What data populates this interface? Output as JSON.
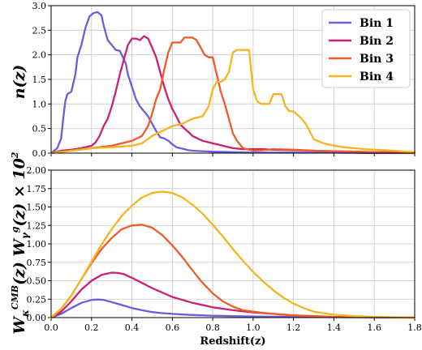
{
  "chart_data": [
    {
      "type": "line",
      "panel": "top",
      "ylabel": "n(z)",
      "xlim": [
        0.0,
        1.8
      ],
      "ylim": [
        0.0,
        3.0
      ],
      "xticks": [
        "0.0",
        "0.2",
        "0.4",
        "0.6",
        "0.8",
        "1.0",
        "1.2",
        "1.4",
        "1.6",
        "1.8"
      ],
      "yticks": [
        "0.0",
        "0.5",
        "1.0",
        "1.5",
        "2.0",
        "2.5",
        "3.0"
      ],
      "grid": true,
      "legend_position": "top-right",
      "series": [
        {
          "name": "Bin 1",
          "color": "#6f5bdc",
          "x": [
            0.0,
            0.03,
            0.05,
            0.06,
            0.07,
            0.08,
            0.1,
            0.12,
            0.13,
            0.15,
            0.17,
            0.19,
            0.21,
            0.23,
            0.25,
            0.26,
            0.28,
            0.3,
            0.32,
            0.34,
            0.35,
            0.37,
            0.38,
            0.4,
            0.42,
            0.44,
            0.46,
            0.48,
            0.5,
            0.52,
            0.54,
            0.56,
            0.58,
            0.6,
            0.62,
            0.64,
            0.66,
            0.68,
            0.7,
            0.75,
            0.8,
            0.9,
            1.0,
            1.2,
            1.4,
            1.6,
            1.8
          ],
          "y": [
            0.0,
            0.1,
            0.3,
            0.7,
            1.05,
            1.2,
            1.25,
            1.6,
            1.95,
            2.2,
            2.55,
            2.78,
            2.85,
            2.87,
            2.8,
            2.6,
            2.3,
            2.2,
            2.1,
            2.08,
            2.0,
            1.82,
            1.6,
            1.35,
            1.1,
            0.95,
            0.85,
            0.75,
            0.6,
            0.45,
            0.32,
            0.3,
            0.25,
            0.18,
            0.12,
            0.1,
            0.08,
            0.06,
            0.05,
            0.04,
            0.03,
            0.02,
            0.01,
            0.01,
            0.01,
            0.0,
            0.0
          ]
        },
        {
          "name": "Bin 2",
          "color": "#cc2070",
          "x": [
            0.0,
            0.05,
            0.1,
            0.15,
            0.2,
            0.22,
            0.24,
            0.26,
            0.28,
            0.3,
            0.32,
            0.34,
            0.36,
            0.38,
            0.4,
            0.42,
            0.44,
            0.46,
            0.48,
            0.5,
            0.52,
            0.54,
            0.56,
            0.58,
            0.6,
            0.62,
            0.64,
            0.66,
            0.68,
            0.7,
            0.75,
            0.8,
            0.85,
            0.9,
            0.95,
            1.0,
            1.05,
            1.1,
            1.2,
            1.3,
            1.4,
            1.5,
            1.6,
            1.7,
            1.8
          ],
          "y": [
            0.0,
            0.05,
            0.07,
            0.1,
            0.15,
            0.22,
            0.35,
            0.55,
            0.7,
            0.95,
            1.25,
            1.6,
            1.9,
            2.2,
            2.33,
            2.33,
            2.3,
            2.38,
            2.33,
            2.15,
            1.95,
            1.65,
            1.35,
            1.1,
            0.9,
            0.75,
            0.58,
            0.5,
            0.43,
            0.35,
            0.25,
            0.2,
            0.15,
            0.1,
            0.08,
            0.08,
            0.08,
            0.07,
            0.06,
            0.05,
            0.04,
            0.03,
            0.02,
            0.02,
            0.01
          ]
        },
        {
          "name": "Bin 3",
          "color": "#ef5a2a",
          "x": [
            0.0,
            0.1,
            0.2,
            0.3,
            0.35,
            0.4,
            0.45,
            0.48,
            0.5,
            0.52,
            0.54,
            0.56,
            0.58,
            0.6,
            0.62,
            0.64,
            0.66,
            0.68,
            0.7,
            0.72,
            0.74,
            0.76,
            0.78,
            0.8,
            0.82,
            0.84,
            0.86,
            0.88,
            0.9,
            0.92,
            0.95,
            1.0,
            1.05,
            1.1,
            1.2,
            1.3,
            1.4,
            1.5,
            1.6,
            1.7,
            1.8
          ],
          "y": [
            0.0,
            0.05,
            0.1,
            0.15,
            0.2,
            0.25,
            0.35,
            0.55,
            0.8,
            1.1,
            1.3,
            1.7,
            2.05,
            2.25,
            2.25,
            2.25,
            2.35,
            2.35,
            2.35,
            2.3,
            2.15,
            2.0,
            1.95,
            1.95,
            1.6,
            1.25,
            1.0,
            0.7,
            0.4,
            0.25,
            0.1,
            0.05,
            0.06,
            0.08,
            0.07,
            0.05,
            0.04,
            0.03,
            0.02,
            0.01,
            0.0
          ]
        },
        {
          "name": "Bin 4",
          "color": "#f5b51f",
          "x": [
            0.0,
            0.1,
            0.2,
            0.3,
            0.4,
            0.45,
            0.5,
            0.55,
            0.6,
            0.65,
            0.7,
            0.75,
            0.78,
            0.8,
            0.82,
            0.84,
            0.86,
            0.88,
            0.9,
            0.92,
            0.95,
            0.98,
            1.0,
            1.02,
            1.04,
            1.06,
            1.08,
            1.1,
            1.12,
            1.14,
            1.16,
            1.18,
            1.2,
            1.22,
            1.24,
            1.26,
            1.28,
            1.3,
            1.35,
            1.4,
            1.45,
            1.5,
            1.55,
            1.6,
            1.65,
            1.7,
            1.75,
            1.8
          ],
          "y": [
            0.0,
            0.05,
            0.1,
            0.12,
            0.15,
            0.2,
            0.35,
            0.45,
            0.55,
            0.6,
            0.7,
            0.75,
            0.95,
            1.3,
            1.45,
            1.45,
            1.5,
            1.65,
            2.05,
            2.1,
            2.1,
            2.1,
            1.3,
            1.05,
            1.0,
            1.0,
            1.0,
            1.2,
            1.2,
            1.2,
            0.95,
            0.85,
            0.85,
            0.78,
            0.7,
            0.6,
            0.45,
            0.28,
            0.2,
            0.15,
            0.12,
            0.1,
            0.08,
            0.07,
            0.06,
            0.05,
            0.03,
            0.02
          ]
        }
      ]
    },
    {
      "type": "line",
      "panel": "bottom",
      "ylabel": "W_κ^CMB(z) W_γ^g(z) × 10²",
      "xlabel": "Redshift(z)",
      "xlim": [
        0.0,
        1.8
      ],
      "ylim": [
        0.0,
        2.0
      ],
      "xticks": [
        "0.0",
        "0.2",
        "0.4",
        "0.6",
        "0.8",
        "1.0",
        "1.2",
        "1.4",
        "1.6",
        "1.8"
      ],
      "yticks": [
        "0.00",
        "0.25",
        "0.50",
        "0.75",
        "1.00",
        "1.25",
        "1.50",
        "1.75",
        "2.00"
      ],
      "grid": true,
      "series": [
        {
          "name": "Bin 1",
          "color": "#6f5bdc",
          "x": [
            0.0,
            0.05,
            0.1,
            0.15,
            0.2,
            0.23,
            0.26,
            0.3,
            0.35,
            0.4,
            0.45,
            0.5,
            0.55,
            0.6,
            0.7,
            0.8,
            0.9,
            1.0,
            1.2,
            1.4,
            1.6,
            1.8
          ],
          "y": [
            0.0,
            0.05,
            0.13,
            0.2,
            0.24,
            0.245,
            0.24,
            0.21,
            0.17,
            0.13,
            0.1,
            0.075,
            0.06,
            0.05,
            0.035,
            0.025,
            0.02,
            0.015,
            0.01,
            0.005,
            0.003,
            0.0
          ]
        },
        {
          "name": "Bin 2",
          "color": "#cc2070",
          "x": [
            0.0,
            0.05,
            0.1,
            0.15,
            0.2,
            0.25,
            0.3,
            0.33,
            0.36,
            0.4,
            0.45,
            0.5,
            0.55,
            0.6,
            0.7,
            0.8,
            0.9,
            1.0,
            1.1,
            1.2,
            1.4,
            1.6,
            1.8
          ],
          "y": [
            0.0,
            0.08,
            0.22,
            0.38,
            0.5,
            0.58,
            0.61,
            0.605,
            0.59,
            0.54,
            0.47,
            0.4,
            0.34,
            0.28,
            0.2,
            0.14,
            0.1,
            0.07,
            0.05,
            0.03,
            0.01,
            0.005,
            0.0
          ]
        },
        {
          "name": "Bin 3",
          "color": "#ef5a2a",
          "x": [
            0.0,
            0.05,
            0.1,
            0.15,
            0.2,
            0.25,
            0.3,
            0.35,
            0.4,
            0.45,
            0.5,
            0.55,
            0.6,
            0.65,
            0.7,
            0.75,
            0.8,
            0.85,
            0.9,
            0.95,
            1.0,
            1.05,
            1.1,
            1.2,
            1.3,
            1.4,
            1.6,
            1.8
          ],
          "y": [
            0.0,
            0.12,
            0.3,
            0.52,
            0.74,
            0.93,
            1.08,
            1.2,
            1.25,
            1.26,
            1.22,
            1.12,
            0.98,
            0.82,
            0.64,
            0.47,
            0.33,
            0.22,
            0.15,
            0.1,
            0.08,
            0.065,
            0.05,
            0.03,
            0.02,
            0.01,
            0.005,
            0.0
          ]
        },
        {
          "name": "Bin 4",
          "color": "#f5b51f",
          "x": [
            0.0,
            0.05,
            0.1,
            0.15,
            0.2,
            0.25,
            0.3,
            0.35,
            0.4,
            0.45,
            0.5,
            0.55,
            0.6,
            0.65,
            0.7,
            0.75,
            0.8,
            0.85,
            0.9,
            0.95,
            1.0,
            1.05,
            1.1,
            1.15,
            1.2,
            1.25,
            1.3,
            1.4,
            1.5,
            1.6,
            1.7,
            1.8
          ],
          "y": [
            0.0,
            0.12,
            0.3,
            0.52,
            0.76,
            0.99,
            1.2,
            1.38,
            1.52,
            1.63,
            1.69,
            1.71,
            1.69,
            1.63,
            1.53,
            1.41,
            1.26,
            1.1,
            0.93,
            0.77,
            0.62,
            0.49,
            0.37,
            0.27,
            0.19,
            0.13,
            0.08,
            0.04,
            0.02,
            0.01,
            0.005,
            0.0
          ]
        }
      ]
    }
  ]
}
